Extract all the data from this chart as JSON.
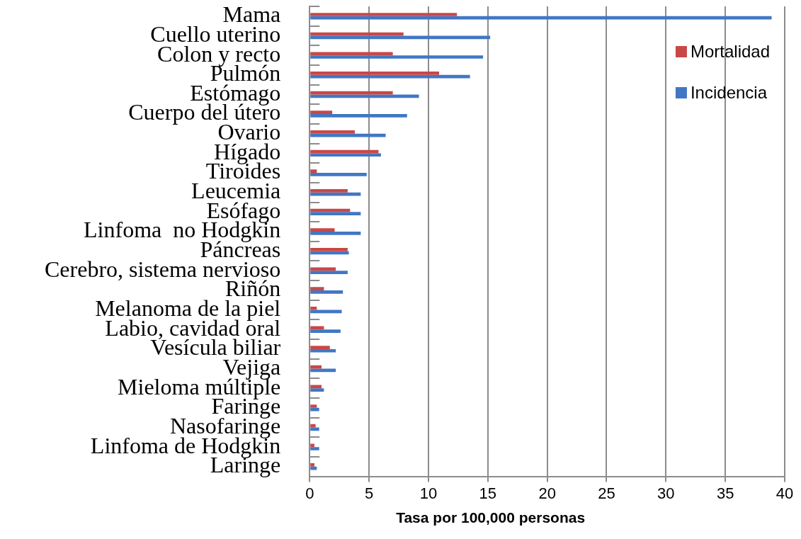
{
  "chart_data": {
    "type": "bar",
    "orientation": "horizontal",
    "xlabel": "Tasa por 100,000 personas",
    "categories": [
      "Mama",
      "Cuello uterino",
      "Colon y recto",
      "Pulmón",
      "Estómago",
      "Cuerpo del útero",
      "Ovario",
      "Hígado",
      "Tiroides",
      "Leucemia",
      "Esófago",
      "Linfoma  no Hodgkin",
      "Páncreas",
      "Cerebro, sistema nervioso",
      "Riñón",
      "Melanoma de la piel",
      "Labio, cavidad oral",
      "Vesícula biliar",
      "Vejiga",
      "Mieloma múltiple",
      "Faringe",
      "Nasofaringe",
      "Linfoma de Hodgkin",
      "Laringe"
    ],
    "series": [
      {
        "name": "Mortalidad",
        "color": "#c84848",
        "values": [
          12.4,
          7.9,
          7.0,
          10.9,
          7.0,
          1.9,
          3.8,
          5.8,
          0.6,
          3.2,
          3.4,
          2.1,
          3.2,
          2.2,
          1.2,
          0.6,
          1.2,
          1.7,
          1.0,
          1.0,
          0.6,
          0.5,
          0.4,
          0.4
        ]
      },
      {
        "name": "Incidencia",
        "color": "#4177c4",
        "values": [
          38.9,
          15.2,
          14.6,
          13.5,
          9.2,
          8.2,
          6.4,
          6.0,
          4.8,
          4.3,
          4.3,
          4.3,
          3.3,
          3.2,
          2.8,
          2.7,
          2.6,
          2.2,
          2.2,
          1.2,
          0.8,
          0.8,
          0.8,
          0.6
        ]
      }
    ],
    "xlim": [
      0,
      40
    ],
    "xticks": [
      0,
      5,
      10,
      15,
      20,
      25,
      30,
      35,
      40
    ],
    "grid": "x",
    "legend": "top right"
  }
}
